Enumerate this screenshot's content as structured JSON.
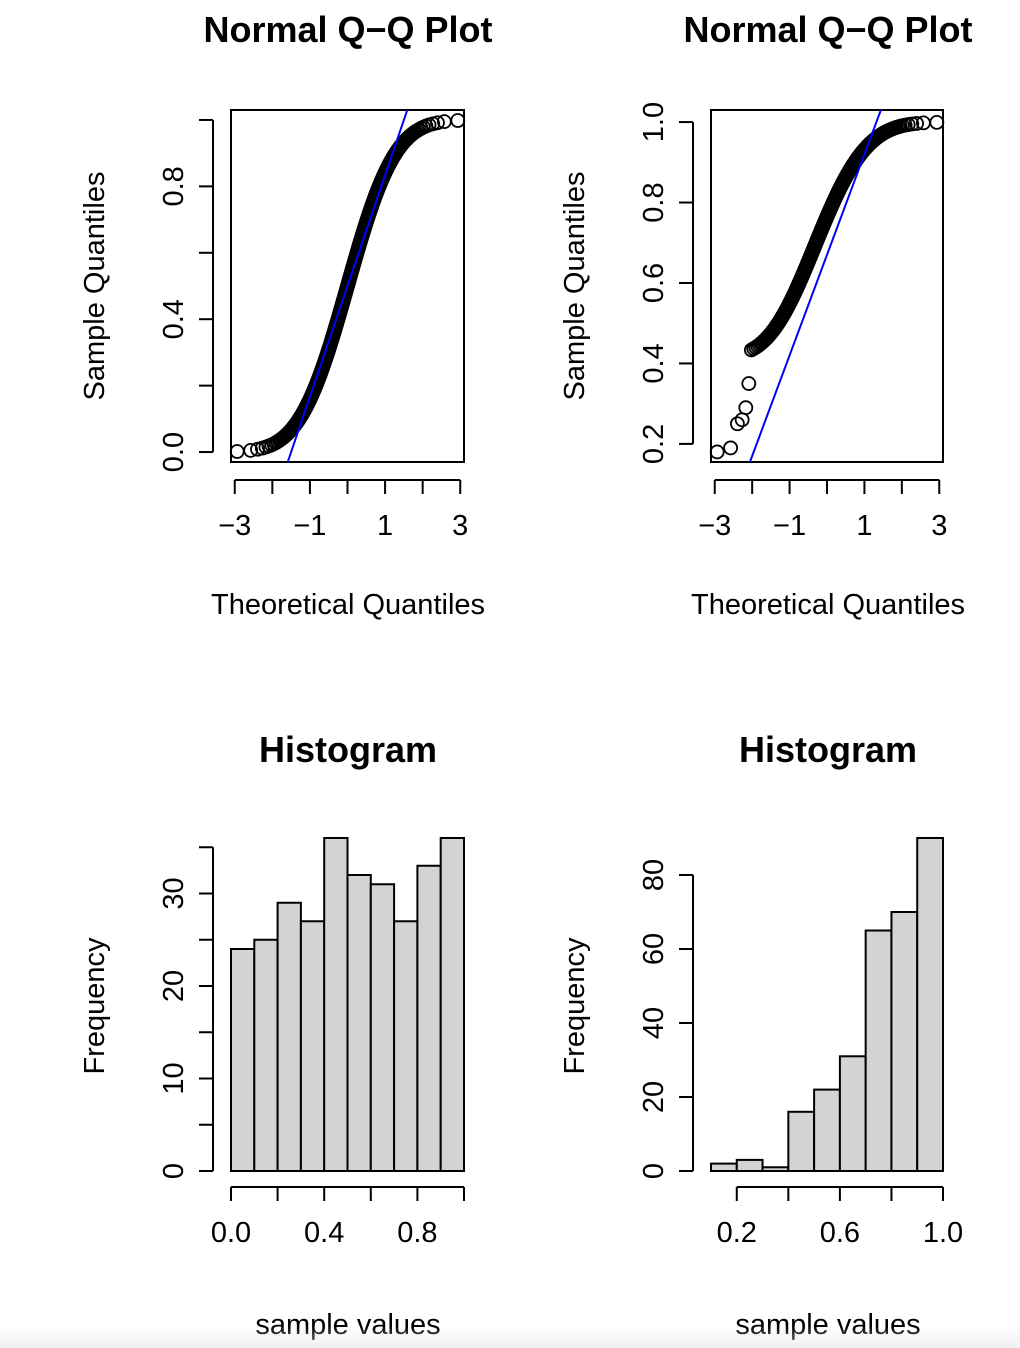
{
  "chart_data": [
    {
      "type": "scatter",
      "title": "Normal Q−Q Plot",
      "xlabel": "Theoretical Quantiles",
      "ylabel": "Sample Quantiles",
      "xlim": [
        -3.1,
        3.1
      ],
      "ylim": [
        -0.03,
        1.03
      ],
      "xticks": [
        -3,
        -2,
        -1,
        0,
        1,
        2,
        3
      ],
      "xtick_labels": [
        "−3",
        "",
        "−1",
        "",
        "1",
        "",
        "3"
      ],
      "yticks": [
        0,
        0.2,
        0.4,
        0.6,
        0.8,
        1.0
      ],
      "ytick_labels": [
        "0.0",
        "",
        "0.4",
        "",
        "0.8",
        ""
      ],
      "distribution": "uniform",
      "n": 300,
      "reference_line": {
        "slope": 0.3333,
        "intercept": 0.5,
        "color": "#0000ff"
      },
      "point_color": "#000000"
    },
    {
      "type": "scatter",
      "title": "Normal Q−Q Plot",
      "xlabel": "Theoretical Quantiles",
      "ylabel": "Sample Quantiles",
      "xlim": [
        -3.1,
        3.1
      ],
      "ylim": [
        0.155,
        1.03
      ],
      "xticks": [
        -3,
        -2,
        -1,
        0,
        1,
        2,
        3
      ],
      "xtick_labels": [
        "−3",
        "",
        "−1",
        "",
        "1",
        "",
        "3"
      ],
      "yticks": [
        0.2,
        0.4,
        0.6,
        0.8,
        1.0
      ],
      "ytick_labels": [
        "0.2",
        "0.4",
        "0.6",
        "0.8",
        "1.0"
      ],
      "distribution": "sqrt-uniform",
      "n": 300,
      "low_outliers": [
        0.18,
        0.19,
        0.25,
        0.26,
        0.29,
        0.35
      ],
      "reference_line": {
        "slope": 0.25,
        "intercept": 0.67,
        "color": "#0000ff"
      },
      "point_color": "#000000"
    },
    {
      "type": "bar",
      "title": "Histogram",
      "xlabel": "sample values",
      "ylabel": "Frequency",
      "bin_edges": [
        0.0,
        0.1,
        0.2,
        0.3,
        0.4,
        0.5,
        0.6,
        0.7,
        0.8,
        0.9,
        1.0
      ],
      "values": [
        24,
        25,
        29,
        27,
        36,
        32,
        31,
        27,
        33,
        36
      ],
      "xlim": [
        0.0,
        1.0
      ],
      "ylim": [
        0,
        36
      ],
      "xticks": [
        0.0,
        0.2,
        0.4,
        0.6,
        0.8,
        1.0
      ],
      "xtick_labels": [
        "0.0",
        "",
        "0.4",
        "",
        "0.8",
        ""
      ],
      "yticks": [
        0,
        5,
        10,
        15,
        20,
        25,
        30,
        35
      ],
      "ytick_labels": [
        "0",
        "",
        "10",
        "",
        "20",
        "",
        "30",
        ""
      ],
      "bar_color": "#d3d3d3"
    },
    {
      "type": "bar",
      "title": "Histogram",
      "xlabel": "sample values",
      "ylabel": "Frequency",
      "bin_edges": [
        0.1,
        0.2,
        0.3,
        0.4,
        0.5,
        0.6,
        0.7,
        0.8,
        0.9,
        1.0
      ],
      "values": [
        2,
        3,
        1,
        16,
        22,
        31,
        65,
        70,
        90
      ],
      "xlim": [
        0.1,
        1.0
      ],
      "ylim": [
        0,
        90
      ],
      "xticks": [
        0.2,
        0.4,
        0.6,
        0.8,
        1.0
      ],
      "xtick_labels": [
        "0.2",
        "",
        "0.6",
        "",
        "1.0"
      ],
      "yticks": [
        0,
        20,
        40,
        60,
        80
      ],
      "ytick_labels": [
        "0",
        "20",
        "40",
        "60",
        "80"
      ],
      "bar_color": "#d3d3d3"
    }
  ]
}
